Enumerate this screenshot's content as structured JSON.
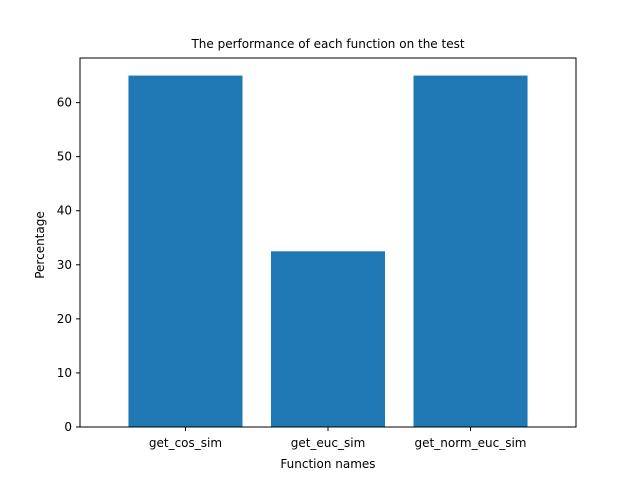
{
  "chart_data": {
    "type": "bar",
    "title": "The performance of each function on the test",
    "xlabel": "Function names",
    "ylabel": "Percentage",
    "categories": [
      "get_cos_sim",
      "get_euc_sim",
      "get_norm_euc_sim"
    ],
    "values": [
      65,
      32.5,
      65
    ],
    "ylim": [
      0,
      68.25
    ],
    "yticks": [
      0,
      10,
      20,
      30,
      40,
      50,
      60
    ],
    "grid": false,
    "bar_color": "#1f77b4"
  }
}
